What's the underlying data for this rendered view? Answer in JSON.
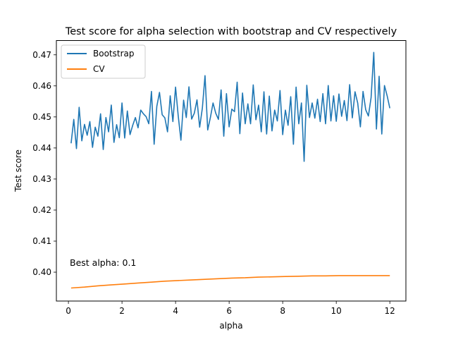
{
  "chart_data": {
    "type": "line",
    "title": "Test score for alpha selection with bootstrap and CV respectively",
    "xlabel": "alpha",
    "ylabel": "Test score",
    "xlim": [
      -0.45,
      12.6
    ],
    "ylim": [
      0.3907,
      0.4746
    ],
    "xticks": [
      0,
      2,
      4,
      6,
      8,
      10,
      12
    ],
    "yticks": [
      0.4,
      0.41,
      0.42,
      0.43,
      0.44,
      0.45,
      0.46,
      0.47
    ],
    "grid": false,
    "legend_position": "upper-left",
    "annotation": {
      "text": "Best alpha: 0.1",
      "x": 0.05,
      "y": 0.402
    },
    "series": [
      {
        "name": "Bootstrap",
        "color": "#1f77b4",
        "x": [
          0.1,
          0.2,
          0.3,
          0.4,
          0.5,
          0.6,
          0.7,
          0.8,
          0.9,
          1.0,
          1.1,
          1.2,
          1.3,
          1.4,
          1.5,
          1.6,
          1.7,
          1.8,
          1.9,
          2.0,
          2.1,
          2.2,
          2.3,
          2.4,
          2.5,
          2.6,
          2.7,
          2.8,
          2.9,
          3.0,
          3.1,
          3.2,
          3.3,
          3.4,
          3.5,
          3.6,
          3.7,
          3.8,
          3.9,
          4.0,
          4.1,
          4.2,
          4.3,
          4.4,
          4.5,
          4.6,
          4.7,
          4.8,
          4.9,
          5.0,
          5.1,
          5.2,
          5.3,
          5.4,
          5.5,
          5.6,
          5.7,
          5.8,
          5.9,
          6.0,
          6.1,
          6.2,
          6.3,
          6.4,
          6.5,
          6.6,
          6.7,
          6.8,
          6.9,
          7.0,
          7.1,
          7.2,
          7.3,
          7.4,
          7.5,
          7.6,
          7.7,
          7.8,
          7.9,
          8.0,
          8.1,
          8.2,
          8.3,
          8.4,
          8.5,
          8.6,
          8.7,
          8.8,
          8.9,
          9.0,
          9.1,
          9.2,
          9.3,
          9.4,
          9.5,
          9.6,
          9.7,
          9.8,
          9.9,
          10.0,
          10.1,
          10.2,
          10.3,
          10.4,
          10.5,
          10.6,
          10.7,
          10.8,
          10.9,
          11.0,
          11.1,
          11.2,
          11.3,
          11.4,
          11.5,
          11.6,
          11.7,
          11.8,
          11.9,
          12.0
        ],
        "values": [
          0.4415,
          0.4492,
          0.4398,
          0.4531,
          0.4423,
          0.4476,
          0.4441,
          0.4485,
          0.4402,
          0.4467,
          0.4438,
          0.451,
          0.4395,
          0.4498,
          0.4452,
          0.4538,
          0.4418,
          0.4475,
          0.4433,
          0.4545,
          0.4432,
          0.4519,
          0.4443,
          0.4473,
          0.4498,
          0.4465,
          0.4522,
          0.451,
          0.4501,
          0.4478,
          0.4582,
          0.4412,
          0.4534,
          0.4579,
          0.4507,
          0.4497,
          0.4452,
          0.4568,
          0.4485,
          0.4596,
          0.4503,
          0.4425,
          0.4554,
          0.4498,
          0.4597,
          0.4493,
          0.4512,
          0.4555,
          0.4467,
          0.4528,
          0.4633,
          0.4458,
          0.4498,
          0.4545,
          0.4512,
          0.4492,
          0.4587,
          0.4438,
          0.4575,
          0.4468,
          0.4525,
          0.4517,
          0.4612,
          0.4446,
          0.4577,
          0.4478,
          0.4542,
          0.4478,
          0.4603,
          0.4491,
          0.4538,
          0.4452,
          0.4581,
          0.4445,
          0.4567,
          0.4455,
          0.4522,
          0.4487,
          0.4585,
          0.4443,
          0.4522,
          0.4473,
          0.4565,
          0.4412,
          0.4596,
          0.4478,
          0.4545,
          0.4357,
          0.4602,
          0.4498,
          0.4545,
          0.4496,
          0.4557,
          0.4485,
          0.4575,
          0.4478,
          0.4601,
          0.4487,
          0.4568,
          0.4486,
          0.4574,
          0.4502,
          0.4553,
          0.4488,
          0.4604,
          0.4497,
          0.4581,
          0.4545,
          0.4468,
          0.4582,
          0.4523,
          0.4503,
          0.4562,
          0.4708,
          0.4461,
          0.4631,
          0.4445,
          0.4601,
          0.4568,
          0.4528
        ]
      },
      {
        "name": "CV",
        "color": "#ff7f0e",
        "x": [
          0.1,
          0.6,
          1.1,
          1.6,
          2.1,
          2.6,
          3.1,
          3.6,
          4.1,
          4.6,
          5.1,
          5.6,
          6.1,
          6.6,
          7.1,
          7.6,
          8.1,
          8.6,
          9.1,
          9.6,
          10.1,
          10.6,
          11.1,
          11.6,
          12.0
        ],
        "values": [
          0.3949,
          0.3952,
          0.3956,
          0.3959,
          0.3962,
          0.3965,
          0.3968,
          0.3971,
          0.3973,
          0.3975,
          0.3977,
          0.3979,
          0.3981,
          0.3982,
          0.3984,
          0.3985,
          0.3986,
          0.3987,
          0.3988,
          0.3988,
          0.3989,
          0.3989,
          0.3989,
          0.3989,
          0.3989
        ]
      }
    ]
  }
}
